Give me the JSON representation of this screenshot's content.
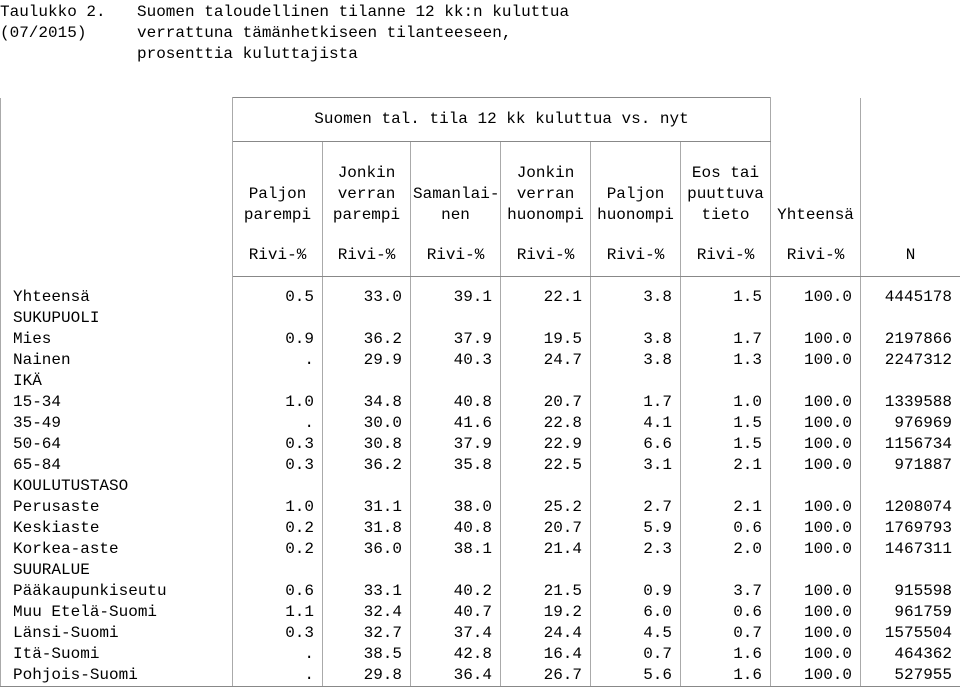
{
  "caption": {
    "number": "Taulukko 2.",
    "period": "(07/2015)",
    "lines": [
      "Suomen taloudellinen tilanne 12 kk:n kuluttua",
      "verrattuna tämänhetkiseen tilanteeseen,",
      "prosenttia kuluttajista"
    ]
  },
  "table": {
    "group_header": "Suomen tal. tila 12 kk kuluttua vs. nyt",
    "columns": [
      "Paljon\nparempi",
      "Jonkin\nverran\nparempi",
      "Samanlai-\nnen",
      "Jonkin\nverran\nhuonompi",
      "Paljon\nhuonompi",
      "Eos tai\npuuttuva\ntieto"
    ],
    "total_header": "Yhteensä",
    "units": [
      "Rivi-%",
      "Rivi-%",
      "Rivi-%",
      "Rivi-%",
      "Rivi-%",
      "Rivi-%",
      "Rivi-%"
    ],
    "n_header": "N",
    "rows": [
      [
        "Yhteensä",
        "0.5",
        "33.0",
        "39.1",
        "22.1",
        "3.8",
        "1.5",
        "100.0",
        "4445178"
      ],
      [
        "SUKUPUOLI"
      ],
      [
        "Mies",
        "0.9",
        "36.2",
        "37.9",
        "19.5",
        "3.8",
        "1.7",
        "100.0",
        "2197866"
      ],
      [
        "Nainen",
        ".",
        "29.9",
        "40.3",
        "24.7",
        "3.8",
        "1.3",
        "100.0",
        "2247312"
      ],
      [
        "IKÄ"
      ],
      [
        "15-34",
        "1.0",
        "34.8",
        "40.8",
        "20.7",
        "1.7",
        "1.0",
        "100.0",
        "1339588"
      ],
      [
        "35-49",
        ".",
        "30.0",
        "41.6",
        "22.8",
        "4.1",
        "1.5",
        "100.0",
        "976969"
      ],
      [
        "50-64",
        "0.3",
        "30.8",
        "37.9",
        "22.9",
        "6.6",
        "1.5",
        "100.0",
        "1156734"
      ],
      [
        "65-84",
        "0.3",
        "36.2",
        "35.8",
        "22.5",
        "3.1",
        "2.1",
        "100.0",
        "971887"
      ],
      [
        "KOULUTUSTASO"
      ],
      [
        "Perusaste",
        "1.0",
        "31.1",
        "38.0",
        "25.2",
        "2.7",
        "2.1",
        "100.0",
        "1208074"
      ],
      [
        "Keskiaste",
        "0.2",
        "31.8",
        "40.8",
        "20.7",
        "5.9",
        "0.6",
        "100.0",
        "1769793"
      ],
      [
        "Korkea-aste",
        "0.2",
        "36.0",
        "38.1",
        "21.4",
        "2.3",
        "2.0",
        "100.0",
        "1467311"
      ],
      [
        "SUURALUE"
      ],
      [
        "Pääkaupunkiseutu",
        "0.6",
        "33.1",
        "40.2",
        "21.5",
        "0.9",
        "3.7",
        "100.0",
        "915598"
      ],
      [
        "Muu Etelä-Suomi",
        "1.1",
        "32.4",
        "40.7",
        "19.2",
        "6.0",
        "0.6",
        "100.0",
        "961759"
      ],
      [
        "Länsi-Suomi",
        "0.3",
        "32.7",
        "37.4",
        "24.4",
        "4.5",
        "0.7",
        "100.0",
        "1575504"
      ],
      [
        "Itä-Suomi",
        ".",
        "38.5",
        "42.8",
        "16.4",
        "0.7",
        "1.6",
        "100.0",
        "464362"
      ],
      [
        "Pohjois-Suomi",
        ".",
        "29.8",
        "36.4",
        "26.7",
        "5.6",
        "1.6",
        "100.0",
        "527955"
      ]
    ]
  }
}
